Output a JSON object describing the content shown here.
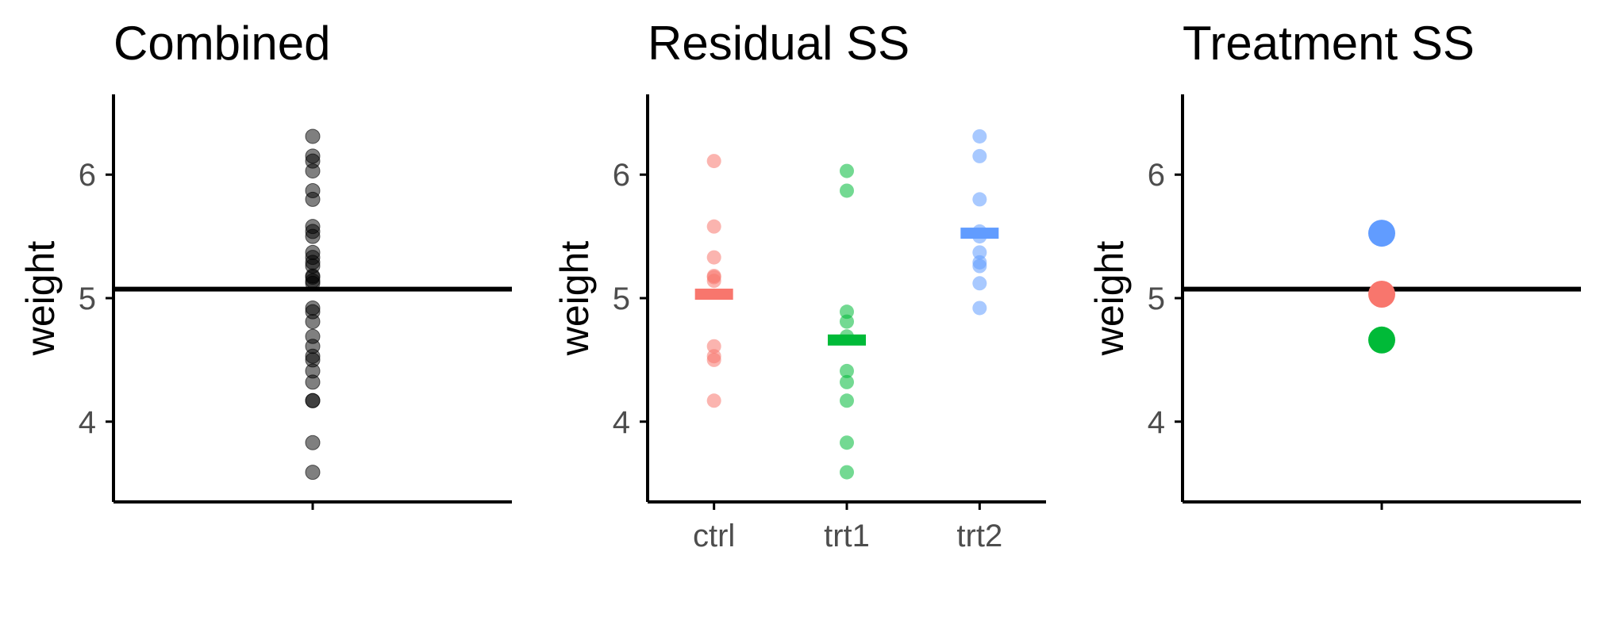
{
  "chart_data": [
    {
      "type": "scatter",
      "title": "Combined",
      "ylabel": "weight",
      "xlabel": "",
      "ylim": [
        3.35,
        6.65
      ],
      "yticks": [
        4,
        5,
        6
      ],
      "ytick_labels": [
        "4",
        "5",
        "6"
      ],
      "categories": [
        ""
      ],
      "point_color": "#000000",
      "points": [
        {
          "x": "",
          "y": 4.17
        },
        {
          "x": "",
          "y": 5.58
        },
        {
          "x": "",
          "y": 5.18
        },
        {
          "x": "",
          "y": 6.11
        },
        {
          "x": "",
          "y": 4.5
        },
        {
          "x": "",
          "y": 4.61
        },
        {
          "x": "",
          "y": 5.17
        },
        {
          "x": "",
          "y": 4.53
        },
        {
          "x": "",
          "y": 5.33
        },
        {
          "x": "",
          "y": 5.14
        },
        {
          "x": "",
          "y": 4.81
        },
        {
          "x": "",
          "y": 4.17
        },
        {
          "x": "",
          "y": 4.41
        },
        {
          "x": "",
          "y": 3.59
        },
        {
          "x": "",
          "y": 5.87
        },
        {
          "x": "",
          "y": 3.83
        },
        {
          "x": "",
          "y": 6.03
        },
        {
          "x": "",
          "y": 4.89
        },
        {
          "x": "",
          "y": 4.32
        },
        {
          "x": "",
          "y": 4.69
        },
        {
          "x": "",
          "y": 6.31
        },
        {
          "x": "",
          "y": 5.12
        },
        {
          "x": "",
          "y": 5.54
        },
        {
          "x": "",
          "y": 5.5
        },
        {
          "x": "",
          "y": 5.37
        },
        {
          "x": "",
          "y": 5.29
        },
        {
          "x": "",
          "y": 4.92
        },
        {
          "x": "",
          "y": 6.15
        },
        {
          "x": "",
          "y": 5.8
        },
        {
          "x": "",
          "y": 5.26
        }
      ],
      "hline": 5.073
    },
    {
      "type": "scatter",
      "title": "Residual SS",
      "ylabel": "weight",
      "xlabel": "",
      "ylim": [
        3.35,
        6.65
      ],
      "yticks": [
        4,
        5,
        6
      ],
      "ytick_labels": [
        "4",
        "5",
        "6"
      ],
      "categories": [
        "ctrl",
        "trt1",
        "trt2"
      ],
      "series": [
        {
          "category": "ctrl",
          "color": "#F8766D",
          "mean": 5.032,
          "values": [
            4.17,
            5.58,
            5.18,
            6.11,
            4.5,
            4.61,
            5.17,
            4.53,
            5.33,
            5.14
          ]
        },
        {
          "category": "trt1",
          "color": "#00BA38",
          "mean": 4.661,
          "values": [
            4.81,
            4.17,
            4.41,
            3.59,
            5.87,
            3.83,
            6.03,
            4.89,
            4.32,
            4.69
          ]
        },
        {
          "category": "trt2",
          "color": "#619CFF",
          "mean": 5.526,
          "values": [
            6.31,
            5.12,
            5.54,
            5.5,
            5.37,
            5.29,
            4.92,
            6.15,
            5.8,
            5.26
          ]
        }
      ]
    },
    {
      "type": "scatter",
      "title": "Treatment SS",
      "ylabel": "weight",
      "xlabel": "",
      "ylim": [
        3.35,
        6.65
      ],
      "yticks": [
        4,
        5,
        6
      ],
      "ytick_labels": [
        "4",
        "5",
        "6"
      ],
      "categories": [
        ""
      ],
      "points": [
        {
          "group": "trt2",
          "y": 5.526,
          "color": "#619CFF"
        },
        {
          "group": "ctrl",
          "y": 5.032,
          "color": "#F8766D"
        },
        {
          "group": "trt1",
          "y": 4.661,
          "color": "#00BA38"
        }
      ],
      "hline": 5.073
    }
  ]
}
